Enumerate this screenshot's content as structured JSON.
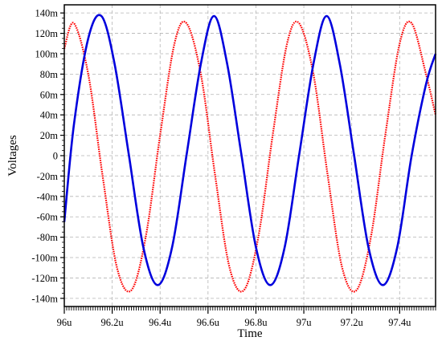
{
  "chart_data": {
    "type": "line",
    "xlabel": "Time",
    "ylabel": "Voltages",
    "xlim": [
      96.0,
      97.55
    ],
    "ylim": [
      -0.148,
      0.148
    ],
    "x_unit_suffix": "u",
    "grid": true,
    "x_ticks": [
      {
        "value": 96.0,
        "label": "96u"
      },
      {
        "value": 96.2,
        "label": "96.2u"
      },
      {
        "value": 96.4,
        "label": "96.4u"
      },
      {
        "value": 96.6,
        "label": "96.6u"
      },
      {
        "value": 96.8,
        "label": "96.8u"
      },
      {
        "value": 97.0,
        "label": "97u"
      },
      {
        "value": 97.2,
        "label": "97.2u"
      },
      {
        "value": 97.4,
        "label": "97.4u"
      }
    ],
    "y_ticks": [
      {
        "value": 0.14,
        "label": "140m"
      },
      {
        "value": 0.12,
        "label": "120m"
      },
      {
        "value": 0.1,
        "label": "100m"
      },
      {
        "value": 0.08,
        "label": "80m"
      },
      {
        "value": 0.06,
        "label": "60m"
      },
      {
        "value": 0.04,
        "label": "40m"
      },
      {
        "value": 0.02,
        "label": "20m"
      },
      {
        "value": 0.0,
        "label": "0"
      },
      {
        "value": -0.02,
        "label": "-20m"
      },
      {
        "value": -0.04,
        "label": "-40m"
      },
      {
        "value": -0.06,
        "label": "-60m"
      },
      {
        "value": -0.08,
        "label": "-80m"
      },
      {
        "value": -0.1,
        "label": "-100m"
      },
      {
        "value": -0.12,
        "label": "-120m"
      },
      {
        "value": -0.14,
        "label": "-140m"
      }
    ],
    "series": [
      {
        "color": "#ff0000",
        "style": "dotted",
        "points": [
          [
            96.0,
            0.105
          ],
          [
            96.04,
            0.13
          ],
          [
            96.1,
            0.08
          ],
          [
            96.16,
            -0.02
          ],
          [
            96.22,
            -0.11
          ],
          [
            96.28,
            -0.132
          ],
          [
            96.34,
            -0.08
          ],
          [
            96.4,
            0.02
          ],
          [
            96.46,
            0.11
          ],
          [
            96.51,
            0.13
          ],
          [
            96.57,
            0.08
          ],
          [
            96.63,
            -0.02
          ],
          [
            96.69,
            -0.11
          ],
          [
            96.75,
            -0.132
          ],
          [
            96.81,
            -0.08
          ],
          [
            96.87,
            0.02
          ],
          [
            96.93,
            0.11
          ],
          [
            96.98,
            0.13
          ],
          [
            97.04,
            0.08
          ],
          [
            97.1,
            -0.02
          ],
          [
            97.16,
            -0.11
          ],
          [
            97.22,
            -0.132
          ],
          [
            97.28,
            -0.08
          ],
          [
            97.34,
            0.02
          ],
          [
            97.4,
            0.11
          ],
          [
            97.45,
            0.13
          ],
          [
            97.51,
            0.08
          ],
          [
            97.55,
            0.04
          ]
        ]
      },
      {
        "color": "#0000dd",
        "style": "solid",
        "points": [
          [
            96.0,
            -0.065
          ],
          [
            96.04,
            0.03
          ],
          [
            96.1,
            0.115
          ],
          [
            96.155,
            0.137
          ],
          [
            96.21,
            0.09
          ],
          [
            96.27,
            0.0
          ],
          [
            96.33,
            -0.09
          ],
          [
            96.39,
            -0.127
          ],
          [
            96.45,
            -0.09
          ],
          [
            96.51,
            0.0
          ],
          [
            96.57,
            0.09
          ],
          [
            96.625,
            0.137
          ],
          [
            96.68,
            0.09
          ],
          [
            96.74,
            0.0
          ],
          [
            96.8,
            -0.09
          ],
          [
            96.86,
            -0.127
          ],
          [
            96.92,
            -0.09
          ],
          [
            96.98,
            0.0
          ],
          [
            97.04,
            0.09
          ],
          [
            97.095,
            0.137
          ],
          [
            97.15,
            0.09
          ],
          [
            97.21,
            0.0
          ],
          [
            97.27,
            -0.09
          ],
          [
            97.33,
            -0.127
          ],
          [
            97.39,
            -0.09
          ],
          [
            97.45,
            0.0
          ],
          [
            97.51,
            0.07
          ],
          [
            97.55,
            0.1
          ]
        ]
      }
    ]
  }
}
